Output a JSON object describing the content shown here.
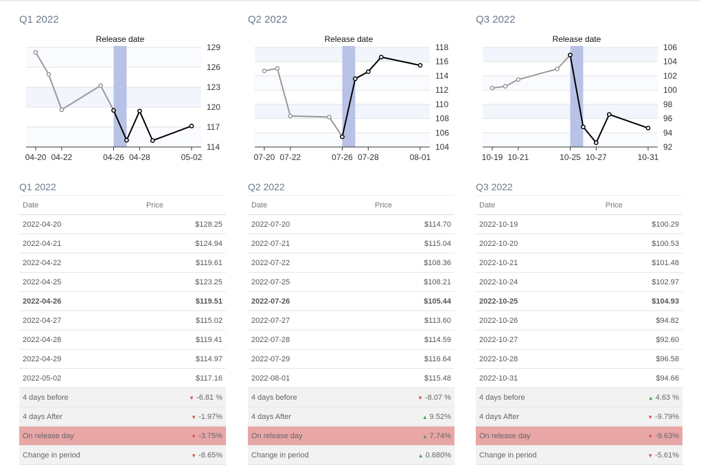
{
  "colors": {
    "line_before": "#999999",
    "line_after": "#000000",
    "release_band": "#b7c2e6",
    "positive": "#3fa34d",
    "negative": "#d9534f",
    "release_row": "#e8a6a6"
  },
  "quarters": [
    {
      "title": "Q1 2022",
      "table_title": "Q1 2022",
      "table": {
        "headers": [
          "Date",
          "Price"
        ],
        "rows": [
          [
            "2022-04-20",
            "$128.25"
          ],
          [
            "2022-04-21",
            "$124.94"
          ],
          [
            "2022-04-22",
            "$119.61"
          ],
          [
            "2022-04-25",
            "$123.25"
          ],
          [
            "2022-04-26",
            "$119.51"
          ],
          [
            "2022-04-27",
            "$115.02"
          ],
          [
            "2022-04-28",
            "$119.41"
          ],
          [
            "2022-04-29",
            "$114.97"
          ],
          [
            "2022-05-02",
            "$117.16"
          ]
        ],
        "bold_row": 4,
        "stats": [
          {
            "label": "4 days before",
            "value": "-6.81 %",
            "dir": "down"
          },
          {
            "label": "4 days After",
            "value": "-1.97%",
            "dir": "down"
          },
          {
            "label": "On release day",
            "value": "-3.75%",
            "dir": "down"
          },
          {
            "label": "Change in period",
            "value": "-8.65%",
            "dir": "down"
          }
        ]
      }
    },
    {
      "title": "Q2 2022",
      "table_title": "Q2 2022",
      "table": {
        "headers": [
          "Date",
          "Price"
        ],
        "rows": [
          [
            "2022-07-20",
            "$114.70"
          ],
          [
            "2022-07-21",
            "$115.04"
          ],
          [
            "2022-07-22",
            "$108.36"
          ],
          [
            "2022-07-25",
            "$108.21"
          ],
          [
            "2022-07-26",
            "$105.44"
          ],
          [
            "2022-07-27",
            "$113.60"
          ],
          [
            "2022-07-28",
            "$114.59"
          ],
          [
            "2022-07-29",
            "$116.64"
          ],
          [
            "2022-08-01",
            "$115.48"
          ]
        ],
        "bold_row": 4,
        "stats": [
          {
            "label": "4 days before",
            "value": "-8.07 %",
            "dir": "down"
          },
          {
            "label": "4 days After",
            "value": "9.52%",
            "dir": "up"
          },
          {
            "label": "On release day",
            "value": "7.74%",
            "dir": "up"
          },
          {
            "label": "Change in period",
            "value": "0.680%",
            "dir": "up"
          }
        ]
      }
    },
    {
      "title": "Q3 2022",
      "table_title": "Q3 2022",
      "table": {
        "headers": [
          "Date",
          "Price"
        ],
        "rows": [
          [
            "2022-10-19",
            "$100.29"
          ],
          [
            "2022-10-20",
            "$100.53"
          ],
          [
            "2022-10-21",
            "$101.48"
          ],
          [
            "2022-10-24",
            "$102.97"
          ],
          [
            "2022-10-25",
            "$104.93"
          ],
          [
            "2022-10-26",
            "$94.82"
          ],
          [
            "2022-10-27",
            "$92.60"
          ],
          [
            "2022-10-28",
            "$96.58"
          ],
          [
            "2022-10-31",
            "$94.66"
          ]
        ],
        "bold_row": 4,
        "stats": [
          {
            "label": "4 days before",
            "value": "4.63 %",
            "dir": "up"
          },
          {
            "label": "4 days After",
            "value": "-9.79%",
            "dir": "down"
          },
          {
            "label": "On release day",
            "value": "-9.63%",
            "dir": "down"
          },
          {
            "label": "Change in period",
            "value": "-5.61%",
            "dir": "down"
          }
        ]
      }
    }
  ],
  "chart_data": [
    {
      "type": "line",
      "title": "Release date",
      "x": [
        "2022-04-20",
        "2022-04-21",
        "2022-04-22",
        "2022-04-25",
        "2022-04-26",
        "2022-04-27",
        "2022-04-28",
        "2022-04-29",
        "2022-05-02"
      ],
      "y": [
        128.25,
        124.94,
        119.61,
        123.25,
        119.51,
        115.02,
        119.41,
        114.97,
        117.16
      ],
      "release_index": 4,
      "x_ticks": [
        "04-20",
        "04-22",
        "04-26",
        "04-28",
        "05-02"
      ],
      "y_ticks": [
        114,
        117,
        120,
        123,
        126,
        129
      ],
      "ylim": [
        114,
        129
      ],
      "grid": true
    },
    {
      "type": "line",
      "title": "Release date",
      "x": [
        "2022-07-20",
        "2022-07-21",
        "2022-07-22",
        "2022-07-25",
        "2022-07-26",
        "2022-07-27",
        "2022-07-28",
        "2022-07-29",
        "2022-08-01"
      ],
      "y": [
        114.7,
        115.04,
        108.36,
        108.21,
        105.44,
        113.6,
        114.59,
        116.64,
        115.48
      ],
      "release_index": 4,
      "x_ticks": [
        "07-20",
        "07-22",
        "07-26",
        "07-28",
        "08-01"
      ],
      "y_ticks": [
        104,
        106,
        108,
        110,
        112,
        114,
        116,
        118
      ],
      "ylim": [
        104,
        118
      ],
      "grid": true
    },
    {
      "type": "line",
      "title": "Release date",
      "x": [
        "2022-10-19",
        "2022-10-20",
        "2022-10-21",
        "2022-10-24",
        "2022-10-25",
        "2022-10-26",
        "2022-10-27",
        "2022-10-28",
        "2022-10-31"
      ],
      "y": [
        100.29,
        100.53,
        101.48,
        102.97,
        104.93,
        94.82,
        92.6,
        96.58,
        94.66
      ],
      "release_index": 4,
      "x_ticks": [
        "10-19",
        "10-21",
        "10-25",
        "10-27",
        "10-31"
      ],
      "y_ticks": [
        92,
        94,
        96,
        98,
        100,
        102,
        104,
        106
      ],
      "ylim": [
        92,
        106
      ],
      "grid": true
    }
  ]
}
